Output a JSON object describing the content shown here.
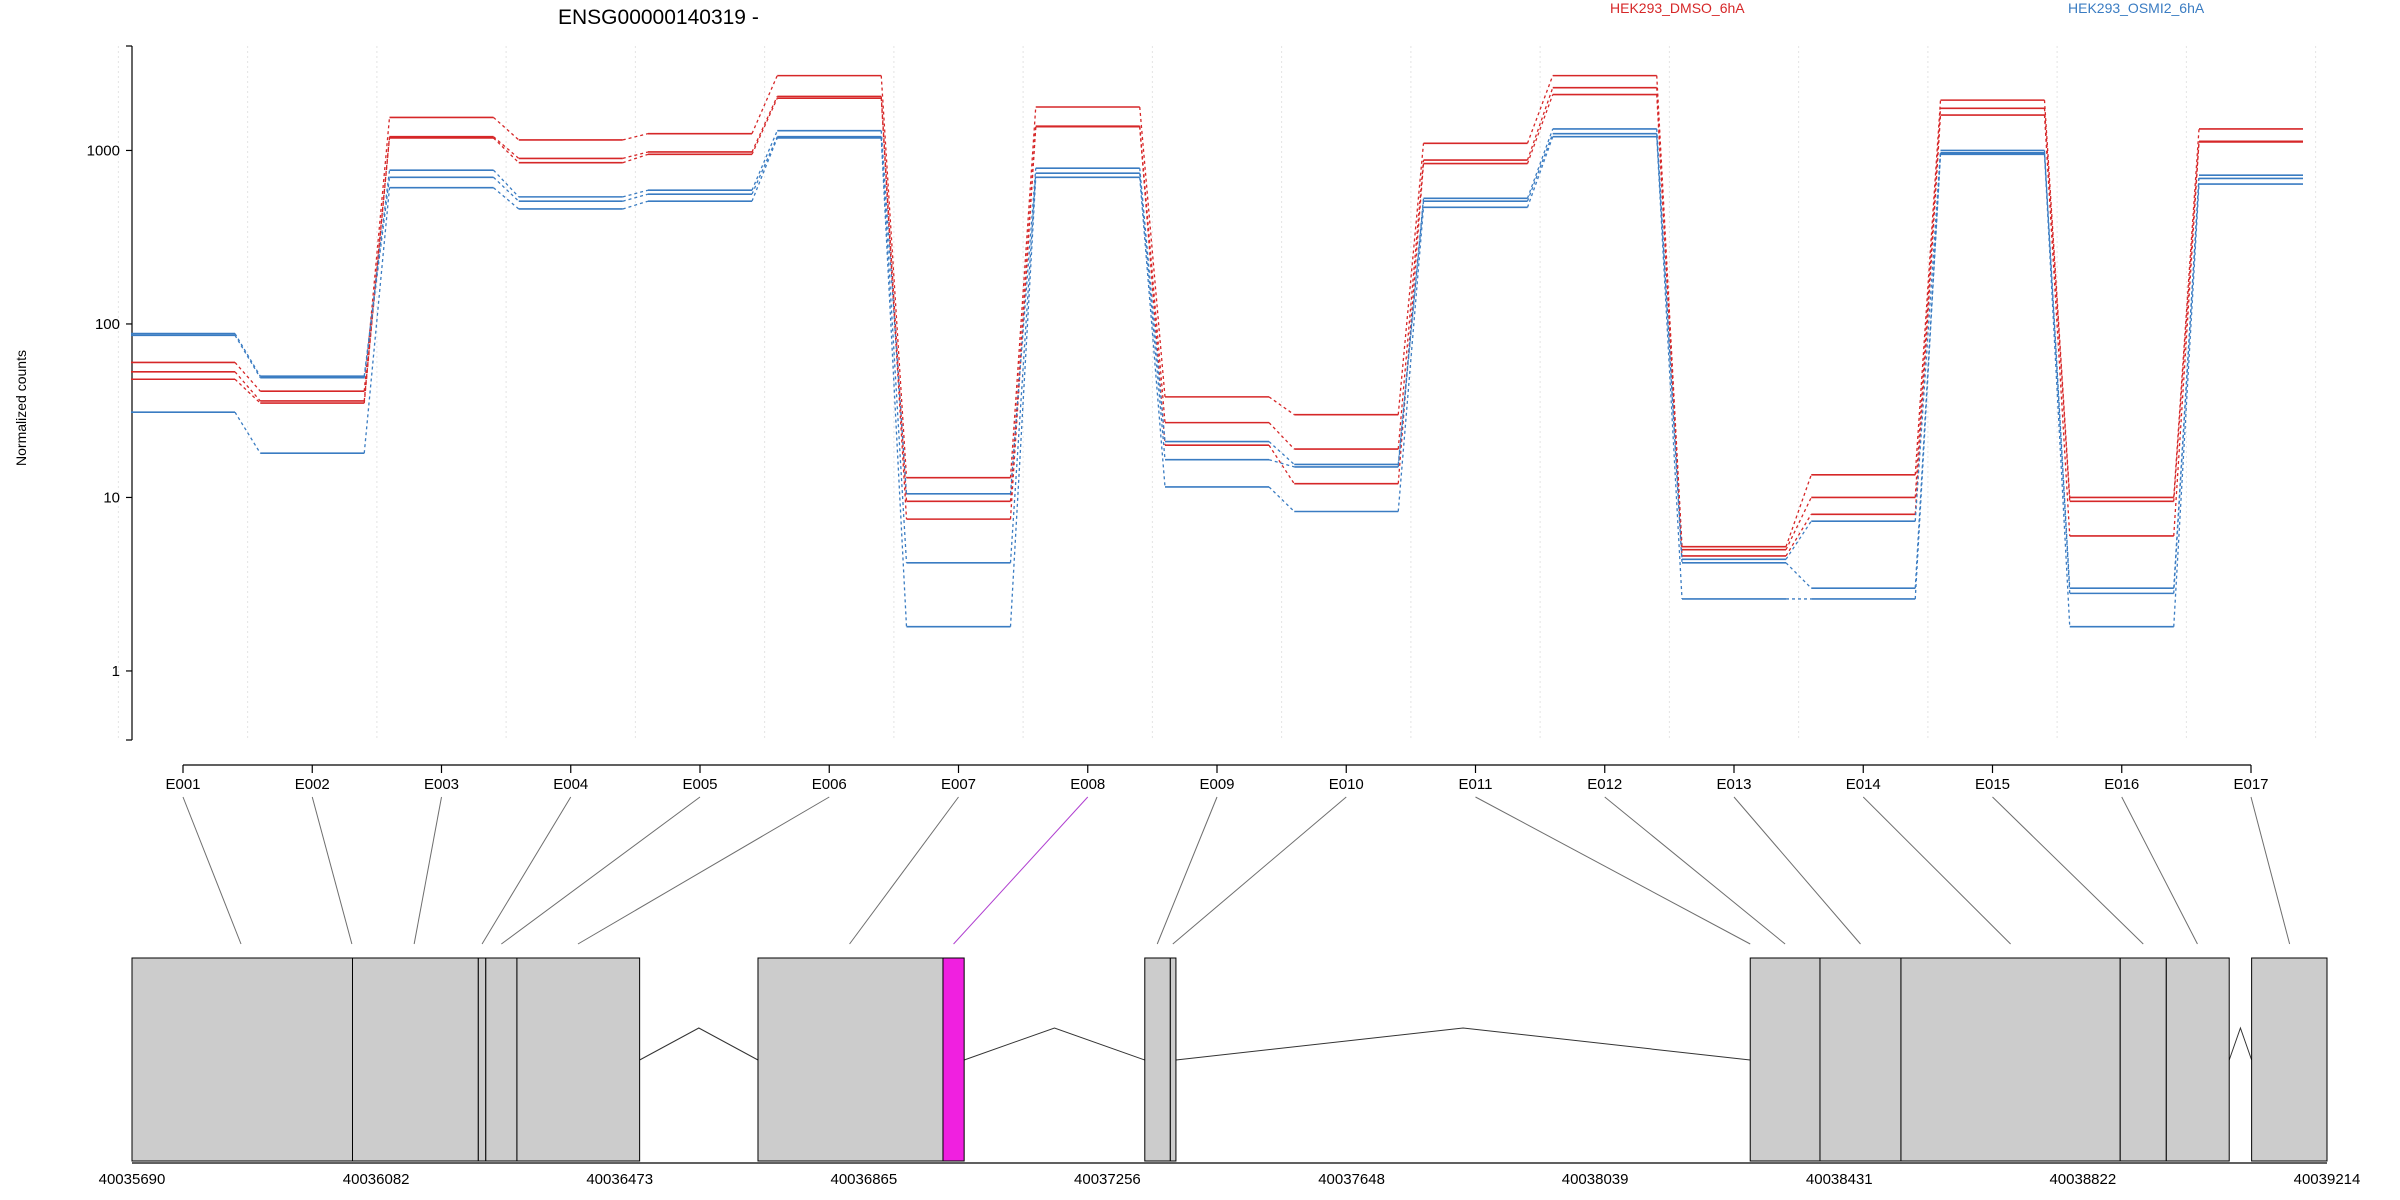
{
  "chart_data": {
    "type": "line",
    "title": "ENSG00000140319 -",
    "ylabel": "Normalized counts",
    "xlabel": "",
    "yscale": "log",
    "ylim": [
      0.4,
      4000
    ],
    "yticks": [
      1,
      10,
      100,
      1000
    ],
    "ytick_labels": [
      "1",
      "10",
      "100",
      "1000"
    ],
    "grid": "vertical dotted at exon boundaries",
    "legend": {
      "placement": "top",
      "entries": [
        {
          "label": "HEK293_DMSO_6hA",
          "color": "#d62728"
        },
        {
          "label": "HEK293_OSMI2_6hA",
          "color": "#3a7cc2"
        }
      ]
    },
    "categories": [
      "E001",
      "E002",
      "E003",
      "E004",
      "E005",
      "E006",
      "E007",
      "E008",
      "E009",
      "E010",
      "E011",
      "E012",
      "E013",
      "E014",
      "E015",
      "E016",
      "E017"
    ],
    "series": [
      {
        "group": "HEK293_DMSO_6hA",
        "color": "#d62728",
        "values": [
          60,
          41,
          1550,
          1150,
          1250,
          2700,
          13,
          1780,
          38,
          30,
          1100,
          2700,
          5.2,
          13.5,
          1950,
          10,
          1330
        ]
      },
      {
        "group": "HEK293_DMSO_6hA",
        "color": "#d62728",
        "values": [
          53,
          36,
          1200,
          900,
          980,
          2050,
          9.5,
          1380,
          27,
          19,
          880,
          2300,
          5.0,
          10,
          1750,
          9.5,
          1130
        ]
      },
      {
        "group": "HEK293_DMSO_6hA",
        "color": "#d62728",
        "values": [
          48,
          35,
          1180,
          850,
          950,
          2000,
          7.5,
          1370,
          20,
          12,
          840,
          2100,
          4.6,
          8,
          1600,
          6,
          1120
        ]
      },
      {
        "group": "HEK293_OSMI2_6hA",
        "color": "#3a7cc2",
        "values": [
          88,
          50,
          770,
          540,
          590,
          1300,
          10.5,
          790,
          21,
          15.5,
          530,
          1330,
          4.4,
          7.3,
          1000,
          3,
          720
        ]
      },
      {
        "group": "HEK293_OSMI2_6hA",
        "color": "#3a7cc2",
        "values": [
          86,
          49,
          700,
          510,
          560,
          1200,
          4.2,
          740,
          16.5,
          15,
          510,
          1250,
          4.2,
          3,
          970,
          2.8,
          690
        ]
      },
      {
        "group": "HEK293_OSMI2_6hA",
        "color": "#3a7cc2",
        "values": [
          31,
          18,
          610,
          460,
          510,
          1180,
          1.8,
          700,
          11.5,
          8.3,
          470,
          1200,
          2.6,
          2.6,
          950,
          1.8,
          640
        ]
      }
    ],
    "gene_model": {
      "coord_start": 40035690,
      "coord_end": 40039214,
      "tick_values": [
        40035690,
        40036082,
        40036473,
        40036865,
        40037256,
        40037648,
        40038039,
        40038431,
        40038822,
        40039214
      ],
      "exon_blocks": [
        {
          "start": 40035690,
          "end": 40036044,
          "highlight": false
        },
        {
          "start": 40036044,
          "end": 40036246,
          "highlight": false
        },
        {
          "start": 40036246,
          "end": 40036258,
          "highlight": false
        },
        {
          "start": 40036258,
          "end": 40036308,
          "highlight": false
        },
        {
          "start": 40036308,
          "end": 40036505,
          "highlight": false
        },
        {
          "start": 40036695,
          "end": 40036992,
          "highlight": false
        },
        {
          "start": 40036992,
          "end": 40037026,
          "highlight": true
        },
        {
          "start": 40037316,
          "end": 40037357,
          "highlight": false
        },
        {
          "start": 40037357,
          "end": 40037366,
          "highlight": false
        },
        {
          "start": 40038288,
          "end": 40038400,
          "highlight": false
        },
        {
          "start": 40038400,
          "end": 40038530,
          "highlight": false
        },
        {
          "start": 40038530,
          "end": 40038882,
          "highlight": false
        },
        {
          "start": 40038882,
          "end": 40038956,
          "highlight": false
        },
        {
          "start": 40038956,
          "end": 40039057,
          "highlight": false
        },
        {
          "start": 40039093,
          "end": 40039214,
          "highlight": false
        }
      ],
      "introns": [
        {
          "start": 40036505,
          "end": 40036695
        },
        {
          "start": 40037026,
          "end": 40037316
        },
        {
          "start": 40037366,
          "end": 40038288
        },
        {
          "start": 40039057,
          "end": 40039093
        }
      ],
      "exon_links": [
        {
          "exon": "E001",
          "target": 40035865,
          "highlight": false
        },
        {
          "exon": "E002",
          "target": 40036043,
          "highlight": false
        },
        {
          "exon": "E003",
          "target": 40036143,
          "highlight": false
        },
        {
          "exon": "E004",
          "target": 40036252,
          "highlight": false
        },
        {
          "exon": "E005",
          "target": 40036283,
          "highlight": false
        },
        {
          "exon": "E006",
          "target": 40036406,
          "highlight": false
        },
        {
          "exon": "E007",
          "target": 40036842,
          "highlight": false
        },
        {
          "exon": "E008",
          "target": 40037009,
          "highlight": true
        },
        {
          "exon": "E009",
          "target": 40037336,
          "highlight": false
        },
        {
          "exon": "E010",
          "target": 40037361,
          "highlight": false
        },
        {
          "exon": "E011",
          "target": 40038288,
          "highlight": false
        },
        {
          "exon": "E012",
          "target": 40038344,
          "highlight": false
        },
        {
          "exon": "E013",
          "target": 40038465,
          "highlight": false
        },
        {
          "exon": "E014",
          "target": 40038706,
          "highlight": false
        },
        {
          "exon": "E015",
          "target": 40038919,
          "highlight": false
        },
        {
          "exon": "E016",
          "target": 40039006,
          "highlight": false
        },
        {
          "exon": "E017",
          "target": 40039154,
          "highlight": false
        }
      ]
    }
  }
}
